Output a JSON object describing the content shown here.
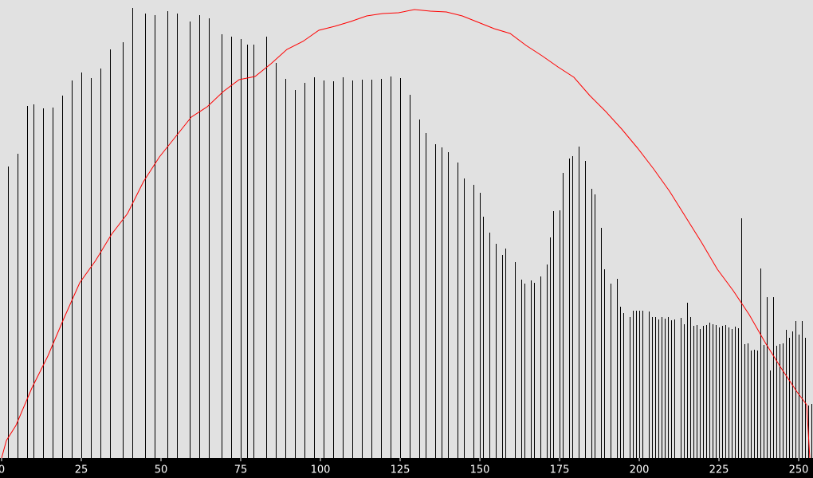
{
  "chart_data": {
    "type": "bar",
    "x": [
      2,
      5,
      8,
      10,
      13,
      16,
      19,
      22,
      25,
      28,
      31,
      34,
      38,
      41,
      45,
      48,
      52,
      55,
      59,
      62,
      65,
      69,
      72,
      75,
      77,
      79,
      83,
      86,
      89,
      92,
      95,
      98,
      101,
      104,
      107,
      110,
      113,
      116,
      119,
      122,
      125,
      128,
      131,
      133,
      136,
      138,
      140,
      143,
      145,
      148,
      150,
      151,
      153,
      155,
      157,
      158,
      161,
      163,
      164,
      166,
      167,
      169,
      171,
      172,
      173,
      175,
      176,
      178,
      179,
      181,
      183,
      185,
      186,
      188,
      189,
      191,
      193,
      194,
      195,
      197,
      198,
      199,
      200,
      201,
      203,
      204,
      205,
      206,
      207,
      208,
      209,
      210,
      211,
      213,
      214,
      215,
      216,
      217,
      218,
      219,
      220,
      221,
      222,
      223,
      224,
      225,
      226,
      227,
      228,
      229,
      230,
      231,
      232,
      233,
      234,
      235,
      236,
      237,
      238,
      239,
      240,
      241,
      242,
      243,
      244,
      245,
      246,
      247,
      248,
      249,
      250,
      251,
      252,
      253,
      254
    ],
    "values": [
      366,
      382,
      442,
      444,
      439,
      440,
      455,
      474,
      484,
      477,
      489,
      513,
      522,
      565,
      558,
      556,
      561,
      558,
      548,
      556,
      552,
      532,
      529,
      526,
      519,
      519,
      529,
      496,
      476,
      462,
      471,
      478,
      474,
      473,
      478,
      474,
      475,
      475,
      476,
      479,
      477,
      456,
      425,
      408,
      394,
      390,
      384,
      371,
      351,
      343,
      333,
      303,
      283,
      269,
      255,
      263,
      246,
      224,
      219,
      223,
      220,
      228,
      243,
      277,
      310,
      311,
      358,
      376,
      379,
      391,
      373,
      338,
      331,
      289,
      237,
      219,
      225,
      190,
      182,
      177,
      185,
      185,
      185,
      185,
      184,
      177,
      177,
      174,
      177,
      175,
      177,
      173,
      174,
      176,
      168,
      195,
      177,
      166,
      167,
      162,
      166,
      167,
      170,
      168,
      167,
      164,
      166,
      167,
      164,
      162,
      165,
      163,
      301,
      143,
      144,
      135,
      136,
      135,
      238,
      142,
      202,
      110,
      202,
      141,
      143,
      144,
      161,
      151,
      159,
      172,
      155,
      172,
      151,
      66,
      68
    ],
    "color": "#000000",
    "line": {
      "color": "#ff0000",
      "x": [
        0,
        1.5,
        4.5,
        9.5,
        14.5,
        19.5,
        24.5,
        29.5,
        34.5,
        39.5,
        44.5,
        49.5,
        54.5,
        59.5,
        64.5,
        69.5,
        74.5,
        79.5,
        84.5,
        89.5,
        94.5,
        99.5,
        104.5,
        109.5,
        114.5,
        119.5,
        124.5,
        129.5,
        134.5,
        139.5,
        144.5,
        149.5,
        154.5,
        159.5,
        164.5,
        169.5,
        174.5,
        179.5,
        184.5,
        189.5,
        194.5,
        199.5,
        204.5,
        209.5,
        214.5,
        219.5,
        224.5,
        229.5,
        234.5,
        239.5,
        244.5,
        249.5,
        252.5,
        253.5
      ],
      "values": [
        0,
        22,
        41,
        88,
        128,
        175,
        220,
        248,
        281,
        307,
        347,
        378,
        403,
        428,
        441,
        460,
        475,
        479,
        495,
        513,
        523,
        537,
        542,
        548,
        555,
        558,
        559,
        563,
        561,
        560,
        555,
        547,
        539,
        533,
        518,
        505,
        491,
        478,
        455,
        435,
        413,
        389,
        363,
        335,
        303,
        271,
        237,
        210,
        180,
        145,
        113,
        83,
        67,
        0
      ]
    },
    "xlim": [
      -0.5,
      254.5
    ],
    "xticks": [
      0,
      25,
      50,
      75,
      100,
      125,
      150,
      175,
      200,
      225,
      250
    ],
    "ylim": [
      0,
      565
    ]
  }
}
